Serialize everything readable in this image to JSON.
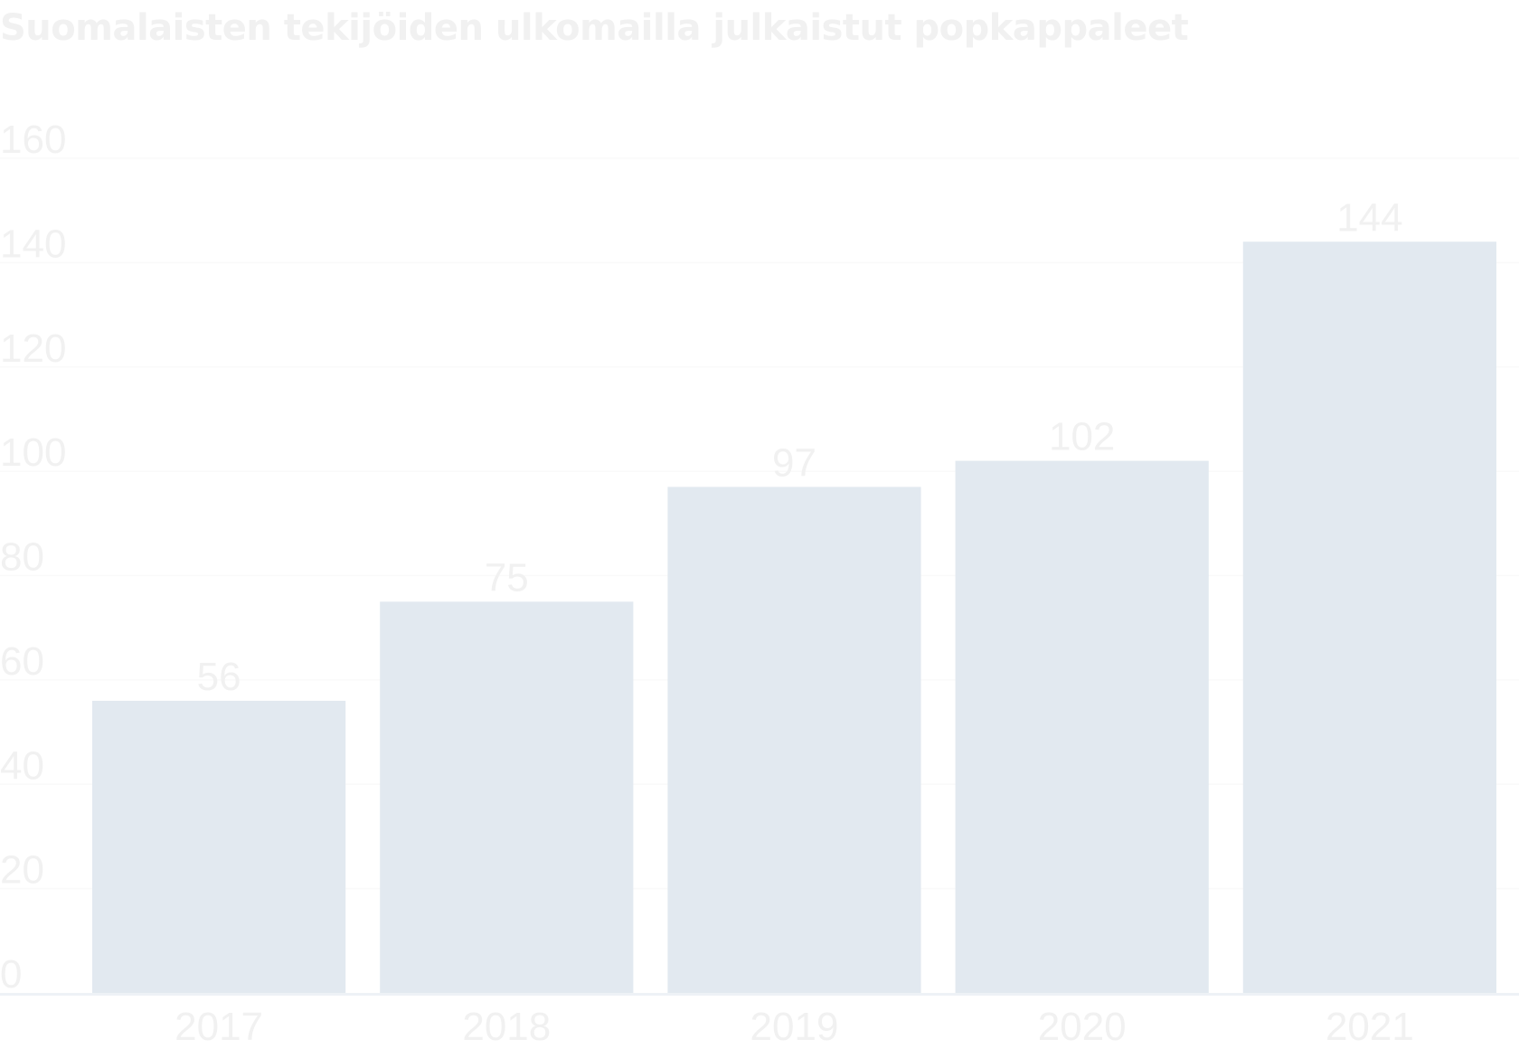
{
  "title": "Suomalaisten tekijöiden ulkomailla julkaistut popkappaleet",
  "colors": {
    "bar": "#e2e9f0",
    "text": "#f1f1f1",
    "grid": "#fafafa",
    "baseline": "#eef2f6"
  },
  "chart_data": {
    "type": "bar",
    "title": "Suomalaisten tekijöiden ulkomailla julkaistut popkappaleet",
    "categories": [
      "2017",
      "2018",
      "2019",
      "2020",
      "2021"
    ],
    "values": [
      56,
      75,
      97,
      102,
      144
    ],
    "data_labels": [
      "56",
      "75",
      "97",
      "102",
      "144"
    ],
    "ylim": [
      0,
      160
    ],
    "y_ticks": [
      0,
      20,
      40,
      60,
      80,
      100,
      120,
      140,
      160
    ],
    "xlabel": "",
    "ylabel": "",
    "grid": true,
    "legend": "none"
  }
}
